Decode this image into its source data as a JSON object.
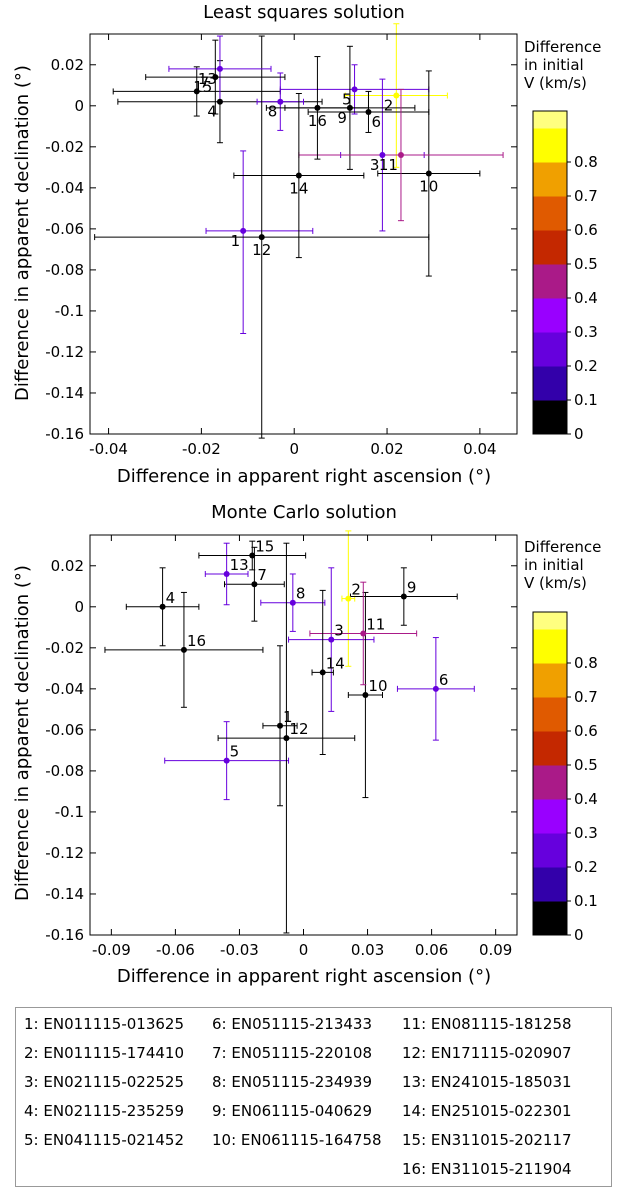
{
  "chart_data": [
    {
      "type": "scatter",
      "title": "Least squares solution",
      "xlabel": "Difference in apparent right ascension (°)",
      "ylabel": "Difference in apparent declination (°)",
      "xlim": [
        -0.044,
        0.048
      ],
      "ylim": [
        -0.16,
        0.035
      ],
      "xticks": [
        -0.04,
        -0.02,
        0,
        0.02,
        0.04
      ],
      "xtick_labels": [
        "-0.04",
        "-0.02",
        "0",
        "0.02",
        "0.04"
      ],
      "yticks": [
        0.02,
        0,
        -0.02,
        -0.04,
        -0.06,
        -0.08,
        -0.1,
        -0.12,
        -0.14,
        -0.16
      ],
      "ytick_labels": [
        "0.02",
        "0",
        "-0.02",
        "-0.04",
        "-0.06",
        "-0.08",
        "-0.1",
        "-0.12",
        "-0.14",
        "-0.16"
      ],
      "colorbar_label": [
        "Difference",
        "in initial",
        "V (km/s)"
      ],
      "points": [
        {
          "id": "1",
          "x": -0.011,
          "y": -0.061,
          "xerr": [
            0.008,
            0.015
          ],
          "yerr": [
            0.05,
            0.039
          ],
          "v": 0.25,
          "label_pos": "bl"
        },
        {
          "id": "2",
          "x": 0.022,
          "y": 0.005,
          "xerr": [
            0.011,
            0.011
          ],
          "yerr": [
            0.035,
            0.035
          ],
          "v": 0.8,
          "label_pos": "bl"
        },
        {
          "id": "3",
          "x": 0.019,
          "y": -0.024,
          "xerr": [
            0.009,
            0.009
          ],
          "yerr": [
            0.037,
            0.037
          ],
          "v": 0.25,
          "label_pos": "bl"
        },
        {
          "id": "4",
          "x": -0.016,
          "y": 0.002,
          "xerr": [
            0.022,
            0.022
          ],
          "yerr": [
            0.02,
            0.02
          ],
          "v": 0.0,
          "label_pos": "bl"
        },
        {
          "id": "5",
          "x": 0.013,
          "y": 0.008,
          "xerr": [
            0.016,
            0.016
          ],
          "yerr": [
            0.012,
            0.012
          ],
          "v": 0.25,
          "label_pos": "bl"
        },
        {
          "id": "6",
          "x": 0.016,
          "y": -0.003,
          "xerr": [
            0.013,
            0.013
          ],
          "yerr": [
            0.01,
            0.01
          ],
          "v": 0.0,
          "label_pos": "br"
        },
        {
          "id": "7",
          "x": -0.021,
          "y": 0.007,
          "xerr": [
            0.018,
            0.018
          ],
          "yerr": [
            0.012,
            0.012
          ],
          "v": 0.0,
          "label_pos": "tr"
        },
        {
          "id": "8",
          "x": -0.003,
          "y": 0.002,
          "xerr": [
            0.005,
            0.005
          ],
          "yerr": [
            0.014,
            0.014
          ],
          "v": 0.25,
          "label_pos": "bl"
        },
        {
          "id": "9",
          "x": 0.012,
          "y": -0.001,
          "xerr": [
            0.014,
            0.014
          ],
          "yerr": [
            0.03,
            0.03
          ],
          "v": 0.0,
          "label_pos": "bl"
        },
        {
          "id": "10",
          "x": 0.029,
          "y": -0.033,
          "xerr": [
            0.011,
            0.011
          ],
          "yerr": [
            0.05,
            0.05
          ],
          "v": 0.0,
          "label_pos": "bb"
        },
        {
          "id": "11",
          "x": 0.023,
          "y": -0.024,
          "xerr": [
            0.022,
            0.022
          ],
          "yerr": [
            0.032,
            0.032
          ],
          "v": 0.45,
          "label_pos": "bl"
        },
        {
          "id": "12",
          "x": -0.007,
          "y": -0.064,
          "xerr": [
            0.036,
            0.036
          ],
          "yerr": [
            0.098,
            0.098
          ],
          "v": 0.0,
          "label_pos": "bb"
        },
        {
          "id": "13",
          "x": -0.016,
          "y": 0.018,
          "xerr": [
            0.011,
            0.011
          ],
          "yerr": [
            0.016,
            0.016
          ],
          "v": 0.25,
          "label_pos": "bl"
        },
        {
          "id": "14",
          "x": 0.001,
          "y": -0.034,
          "xerr": [
            0.014,
            0.014
          ],
          "yerr": [
            0.04,
            0.04
          ],
          "v": 0.0,
          "label_pos": "bb"
        },
        {
          "id": "15",
          "x": -0.017,
          "y": 0.014,
          "xerr": [
            0.015,
            0.015
          ],
          "yerr": [
            0.018,
            0.018
          ],
          "v": 0.0,
          "label_pos": "bl"
        },
        {
          "id": "16",
          "x": 0.005,
          "y": -0.001,
          "xerr": [
            0.011,
            0.011
          ],
          "yerr": [
            0.025,
            0.025
          ],
          "v": 0.0,
          "label_pos": "bb"
        }
      ]
    },
    {
      "type": "scatter",
      "title": "Monte Carlo solution",
      "xlabel": "Difference in apparent right ascension (°)",
      "ylabel": "Difference in apparent declination (°)",
      "xlim": [
        -0.1,
        0.1
      ],
      "ylim": [
        -0.16,
        0.035
      ],
      "xticks": [
        -0.09,
        -0.06,
        -0.03,
        0,
        0.03,
        0.06,
        0.09
      ],
      "xtick_labels": [
        "-0.09",
        "-0.06",
        "-0.03",
        "0",
        "0.03",
        "0.06",
        "0.09"
      ],
      "yticks": [
        0.02,
        0,
        -0.02,
        -0.04,
        -0.06,
        -0.08,
        -0.1,
        -0.12,
        -0.14,
        -0.16
      ],
      "ytick_labels": [
        "0.02",
        "0",
        "-0.02",
        "-0.04",
        "-0.06",
        "-0.08",
        "-0.1",
        "-0.12",
        "-0.14",
        "-0.16"
      ],
      "colorbar_label": [
        "Difference",
        "in initial",
        "V (km/s)"
      ],
      "points": [
        {
          "id": "1",
          "x": -0.011,
          "y": -0.058,
          "xerr": [
            0.008,
            0.008
          ],
          "yerr": [
            0.039,
            0.039
          ],
          "v": 0.0,
          "label_pos": "tr"
        },
        {
          "id": "2",
          "x": 0.021,
          "y": 0.004,
          "xerr": [
            0.003,
            0.003
          ],
          "yerr": [
            0.033,
            0.033
          ],
          "v": 0.8,
          "label_pos": "tr"
        },
        {
          "id": "3",
          "x": 0.013,
          "y": -0.016,
          "xerr": [
            0.02,
            0.02
          ],
          "yerr": [
            0.035,
            0.035
          ],
          "v": 0.25,
          "label_pos": "tr"
        },
        {
          "id": "4",
          "x": -0.066,
          "y": 0.0,
          "xerr": [
            0.017,
            0.017
          ],
          "yerr": [
            0.019,
            0.019
          ],
          "v": 0.0,
          "label_pos": "tr"
        },
        {
          "id": "5",
          "x": -0.036,
          "y": -0.075,
          "xerr": [
            0.029,
            0.029
          ],
          "yerr": [
            0.019,
            0.019
          ],
          "v": 0.25,
          "label_pos": "tr"
        },
        {
          "id": "6",
          "x": 0.062,
          "y": -0.04,
          "xerr": [
            0.018,
            0.018
          ],
          "yerr": [
            0.025,
            0.025
          ],
          "v": 0.25,
          "label_pos": "tr"
        },
        {
          "id": "7",
          "x": -0.023,
          "y": 0.011,
          "xerr": [
            0.014,
            0.014
          ],
          "yerr": [
            0.018,
            0.018
          ],
          "v": 0.0,
          "label_pos": "tr"
        },
        {
          "id": "8",
          "x": -0.005,
          "y": 0.002,
          "xerr": [
            0.015,
            0.015
          ],
          "yerr": [
            0.014,
            0.014
          ],
          "v": 0.25,
          "label_pos": "tr"
        },
        {
          "id": "9",
          "x": 0.047,
          "y": 0.005,
          "xerr": [
            0.025,
            0.025
          ],
          "yerr": [
            0.014,
            0.014
          ],
          "v": 0.0,
          "label_pos": "tr"
        },
        {
          "id": "10",
          "x": 0.029,
          "y": -0.043,
          "xerr": [
            0.008,
            0.008
          ],
          "yerr": [
            0.05,
            0.05
          ],
          "v": 0.0,
          "label_pos": "tr"
        },
        {
          "id": "11",
          "x": 0.028,
          "y": -0.013,
          "xerr": [
            0.025,
            0.025
          ],
          "yerr": [
            0.025,
            0.025
          ],
          "v": 0.45,
          "label_pos": "tr"
        },
        {
          "id": "12",
          "x": -0.008,
          "y": -0.064,
          "xerr": [
            0.032,
            0.032
          ],
          "yerr": [
            0.095,
            0.095
          ],
          "v": 0.0,
          "label_pos": "tr"
        },
        {
          "id": "13",
          "x": -0.036,
          "y": 0.016,
          "xerr": [
            0.01,
            0.01
          ],
          "yerr": [
            0.015,
            0.015
          ],
          "v": 0.25,
          "label_pos": "tr"
        },
        {
          "id": "14",
          "x": 0.009,
          "y": -0.032,
          "xerr": [
            0.005,
            0.005
          ],
          "yerr": [
            0.04,
            0.04
          ],
          "v": 0.0,
          "label_pos": "tr"
        },
        {
          "id": "15",
          "x": -0.024,
          "y": 0.025,
          "xerr": [
            0.025,
            0.025
          ],
          "yerr": [
            0.007,
            0.007
          ],
          "v": 0.0,
          "label_pos": "tr"
        },
        {
          "id": "16",
          "x": -0.056,
          "y": -0.021,
          "xerr": [
            0.037,
            0.037
          ],
          "yerr": [
            0.028,
            0.028
          ],
          "v": 0.0,
          "label_pos": "tr"
        }
      ]
    }
  ],
  "colorbar": {
    "ticks": [
      0,
      0.1,
      0.2,
      0.3,
      0.4,
      0.5,
      0.6,
      0.7,
      0.8
    ],
    "tick_labels": [
      "0",
      "0.1",
      "0.2",
      "0.3",
      "0.4",
      "0.5",
      "0.6",
      "0.7",
      "0.8"
    ],
    "colors": [
      "#000000",
      "#3300aa",
      "#6600dd",
      "#9900ff",
      "#aa1a88",
      "#c42800",
      "#e05a00",
      "#f0a000",
      "#ffff00",
      "#ffff80"
    ]
  },
  "legend": {
    "entries": [
      "1: EN011115-013625",
      "2: EN011115-174410",
      "3: EN021115-022525",
      "4: EN021115-235259",
      "5: EN041115-021452",
      "6: EN051115-213433",
      "7: EN051115-220108",
      "8: EN051115-234939",
      "9: EN061115-040629",
      "10: EN061115-164758",
      "11: EN081115-181258",
      "12: EN171115-020907",
      "13: EN241015-185031",
      "14: EN251015-022301",
      "15: EN311015-202117",
      "16: EN311015-211904"
    ]
  }
}
